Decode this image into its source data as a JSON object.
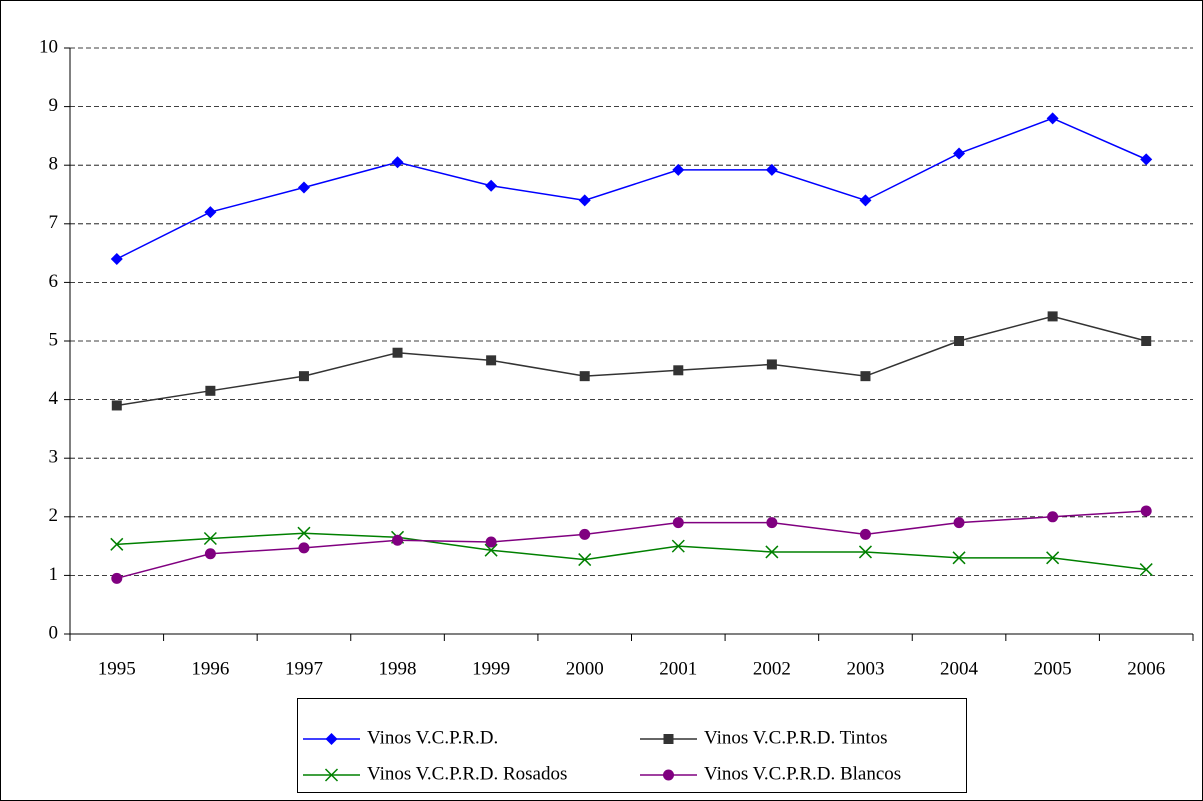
{
  "chart_data": {
    "type": "line",
    "categories": [
      "1995",
      "1996",
      "1997",
      "1998",
      "1999",
      "2000",
      "2001",
      "2002",
      "2003",
      "2004",
      "2005",
      "2006"
    ],
    "series": [
      {
        "name": "Vinos V.C.P.R.D.",
        "color": "#0000ff",
        "marker": "diamond",
        "values": [
          6.4,
          7.2,
          7.62,
          8.05,
          7.65,
          7.4,
          7.92,
          7.92,
          7.4,
          8.2,
          8.8,
          8.1
        ]
      },
      {
        "name": "Vinos V.C.P.R.D. Tintos",
        "color": "#333333",
        "marker": "square",
        "values": [
          3.9,
          4.15,
          4.4,
          4.8,
          4.67,
          4.4,
          4.5,
          4.6,
          4.4,
          5.0,
          5.42,
          5.0
        ]
      },
      {
        "name": "Vinos V.C.P.R.D. Rosados",
        "color": "#008000",
        "marker": "x",
        "values": [
          1.53,
          1.63,
          1.72,
          1.65,
          1.43,
          1.27,
          1.5,
          1.4,
          1.4,
          1.3,
          1.3,
          1.1
        ]
      },
      {
        "name": "Vinos V.C.P.R.D. Blancos",
        "color": "#800080",
        "marker": "circle",
        "values": [
          0.95,
          1.37,
          1.47,
          1.6,
          1.57,
          1.7,
          1.9,
          1.9,
          1.7,
          1.9,
          2.0,
          2.1
        ]
      }
    ],
    "ylim": [
      0,
      10
    ],
    "yticks": [
      0,
      1,
      2,
      3,
      4,
      5,
      6,
      7,
      8,
      9,
      10
    ],
    "grid": true,
    "legend": "bottom"
  }
}
